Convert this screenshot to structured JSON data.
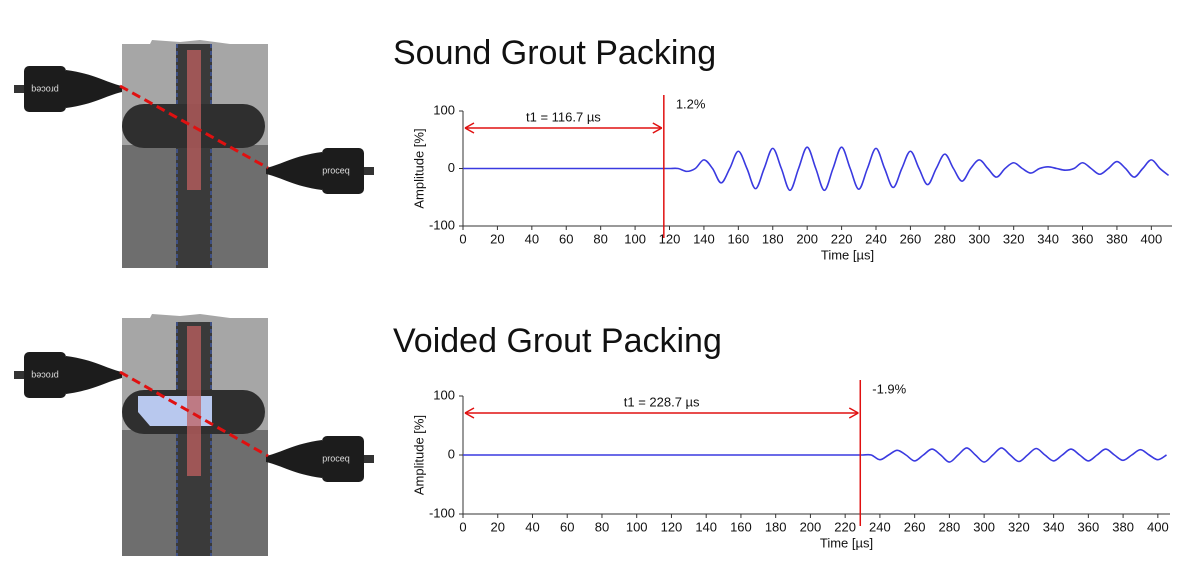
{
  "diagrams": [
    {
      "left_probe": "proceq",
      "right_probe": "proceq"
    },
    {
      "left_probe": "proceq",
      "right_probe": "proceq"
    }
  ],
  "chart_data": [
    {
      "type": "line",
      "title": "Sound Grout Packing",
      "xlabel": "Time [µs]",
      "ylabel": "Amplitude [%]",
      "x": [
        0,
        5,
        10,
        15,
        20,
        25,
        30,
        35,
        40,
        45,
        50,
        55,
        60,
        65,
        70,
        75,
        80,
        85,
        90,
        95,
        100,
        105,
        110,
        115,
        120,
        125,
        130,
        135,
        140,
        145,
        150,
        155,
        160,
        165,
        170,
        175,
        180,
        185,
        190,
        195,
        200,
        205,
        210,
        215,
        220,
        225,
        230,
        235,
        240,
        245,
        250,
        255,
        260,
        265,
        270,
        275,
        280,
        285,
        290,
        295,
        300,
        305,
        310,
        315,
        320,
        325,
        330,
        335,
        340,
        345,
        350,
        355,
        360,
        365,
        370,
        375,
        380,
        385,
        390,
        395,
        400,
        405,
        410
      ],
      "series": [
        {
          "color": "#3a3ae0",
          "values": [
            0,
            0,
            0,
            0,
            0,
            0,
            0,
            0,
            0,
            0,
            0,
            0,
            0,
            0,
            0,
            0,
            0,
            0,
            0,
            0,
            0,
            0,
            0,
            0,
            0,
            0,
            -5,
            0,
            15,
            0,
            -25,
            0,
            30,
            0,
            -35,
            0,
            35,
            0,
            -38,
            0,
            37,
            0,
            -38,
            0,
            37,
            0,
            -36,
            0,
            35,
            0,
            -33,
            0,
            30,
            0,
            -28,
            0,
            25,
            0,
            -22,
            0,
            15,
            0,
            -15,
            0,
            10,
            0,
            -8,
            0,
            3,
            0,
            -3,
            0,
            10,
            0,
            -10,
            0,
            12,
            0,
            -15,
            0,
            15,
            0,
            -12
          ]
        }
      ],
      "xlim": [
        0,
        412
      ],
      "ylim": [
        -100,
        100
      ],
      "xticks": [
        0,
        20,
        40,
        60,
        80,
        100,
        120,
        140,
        160,
        180,
        200,
        220,
        240,
        260,
        280,
        300,
        320,
        340,
        360,
        380,
        400
      ],
      "yticks": [
        -100,
        0,
        100
      ],
      "t1": 116.7,
      "t1_label": "t1 = 116.7 µs",
      "onset_label": "1.2%",
      "marker_color": "#e01010"
    },
    {
      "type": "line",
      "title": "Voided Grout Packing",
      "xlabel": "Time [µs]",
      "ylabel": "Amplitude [%]",
      "x": [
        0,
        5,
        10,
        15,
        20,
        25,
        30,
        35,
        40,
        45,
        50,
        55,
        60,
        65,
        70,
        75,
        80,
        85,
        90,
        95,
        100,
        105,
        110,
        115,
        120,
        125,
        130,
        135,
        140,
        145,
        150,
        155,
        160,
        165,
        170,
        175,
        180,
        185,
        190,
        195,
        200,
        205,
        210,
        215,
        220,
        225,
        230,
        235,
        240,
        245,
        250,
        255,
        260,
        265,
        270,
        275,
        280,
        285,
        290,
        295,
        300,
        305,
        310,
        315,
        320,
        325,
        330,
        335,
        340,
        345,
        350,
        355,
        360,
        365,
        370,
        375,
        380,
        385,
        390,
        395,
        400,
        405
      ],
      "series": [
        {
          "color": "#3a3ae0",
          "values": [
            0,
            0,
            0,
            0,
            0,
            0,
            0,
            0,
            0,
            0,
            0,
            0,
            0,
            0,
            0,
            0,
            0,
            0,
            0,
            0,
            0,
            0,
            0,
            0,
            0,
            0,
            0,
            0,
            0,
            0,
            0,
            0,
            0,
            0,
            0,
            0,
            0,
            0,
            0,
            0,
            0,
            0,
            0,
            0,
            0,
            0,
            0,
            0,
            -8,
            0,
            8,
            0,
            -10,
            0,
            10,
            0,
            -12,
            0,
            12,
            0,
            -12,
            0,
            12,
            0,
            -11,
            0,
            11,
            0,
            -10,
            0,
            10,
            0,
            -10,
            0,
            10,
            0,
            -9,
            0,
            9,
            0,
            -8,
            0
          ]
        }
      ],
      "xlim": [
        0,
        407
      ],
      "ylim": [
        -100,
        100
      ],
      "xticks": [
        0,
        20,
        40,
        60,
        80,
        100,
        120,
        140,
        160,
        180,
        200,
        220,
        240,
        260,
        280,
        300,
        320,
        340,
        360,
        380,
        400
      ],
      "yticks": [
        -100,
        0,
        100
      ],
      "t1": 228.7,
      "t1_label": "t1 = 228.7 µs",
      "onset_label": "-1.9%",
      "marker_color": "#e01010"
    }
  ]
}
